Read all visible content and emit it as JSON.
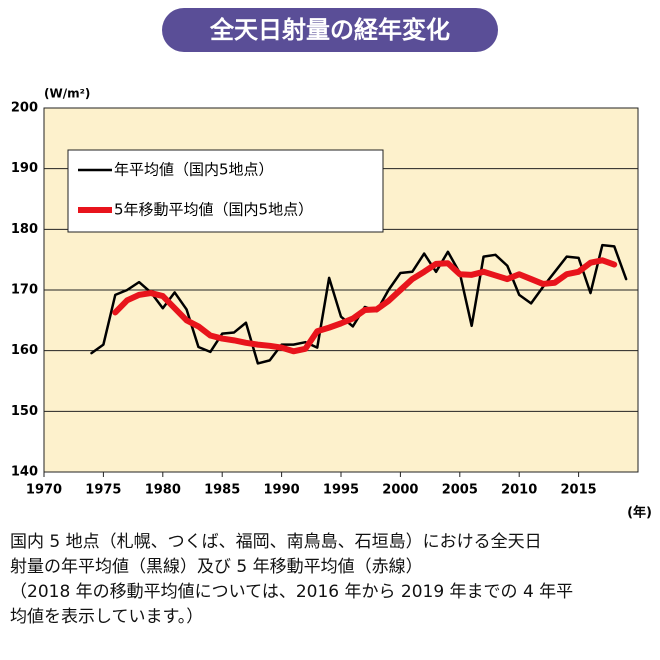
{
  "chart_data": {
    "type": "line",
    "title": "全天日射量の経年変化",
    "y_label": "(W/m²)",
    "x_label": "(年)",
    "x": [
      1974,
      1975,
      1976,
      1977,
      1978,
      1979,
      1980,
      1981,
      1982,
      1983,
      1984,
      1985,
      1986,
      1987,
      1988,
      1989,
      1990,
      1991,
      1992,
      1993,
      1994,
      1995,
      1996,
      1997,
      1998,
      1999,
      2000,
      2001,
      2002,
      2003,
      2004,
      2005,
      2006,
      2007,
      2008,
      2009,
      2010,
      2011,
      2012,
      2013,
      2014,
      2015,
      2016,
      2017,
      2018,
      2019
    ],
    "series": [
      {
        "name": "年平均値（国内5地点）",
        "color": "#000000",
        "width": 2.5,
        "values": [
          159.6,
          161,
          169.2,
          170,
          171.3,
          169.6,
          167,
          169.6,
          166.8,
          160.6,
          159.8,
          162.8,
          163,
          164.6,
          157.9,
          158.4,
          161,
          161,
          161.4,
          160.5,
          172,
          165.6,
          164,
          167.2,
          166.5,
          170,
          172.8,
          173,
          176,
          173,
          176.3,
          172.8,
          164.1,
          175.5,
          175.8,
          174,
          169.2,
          167.8,
          170.5,
          173,
          175.5,
          175.3,
          169.5,
          177.4,
          177.2,
          171.8
        ]
      },
      {
        "name": "5年移動平均値（国内5地点）",
        "color": "#e8141c",
        "width": 6,
        "values": [
          null,
          null,
          166.3,
          168.3,
          169.2,
          169.5,
          169,
          167,
          165,
          164,
          162.5,
          162,
          161.7,
          161.3,
          161,
          160.8,
          160.5,
          159.9,
          160.3,
          163.2,
          163.8,
          164.5,
          165.3,
          166.7,
          166.8,
          168.2,
          170,
          171.8,
          173,
          174.3,
          174.4,
          172.6,
          172.5,
          173,
          172.4,
          171.8,
          172.6,
          171.8,
          171,
          171.2,
          172.6,
          173,
          174.5,
          174.9,
          174.2,
          null
        ]
      }
    ],
    "xlim": [
      1970,
      2020
    ],
    "xticks": [
      1970,
      1975,
      1980,
      1985,
      1990,
      1995,
      2000,
      2005,
      2010,
      2015
    ],
    "ylim": [
      140,
      200
    ],
    "yticks": [
      140,
      150,
      160,
      170,
      180,
      190,
      200
    ],
    "grid": true,
    "background": "#fdf1cc",
    "legend": "upper-left"
  },
  "caption": [
    "国内 5 地点（札幌、つくば、福岡、南鳥島、石垣島）における全天日",
    "射量の年平均値（黒線）及び 5 年移動平均値（赤線）",
    "（2018 年の移動平均値については、2016 年から 2019 年までの 4 年平",
    "均値を表示しています。）"
  ]
}
